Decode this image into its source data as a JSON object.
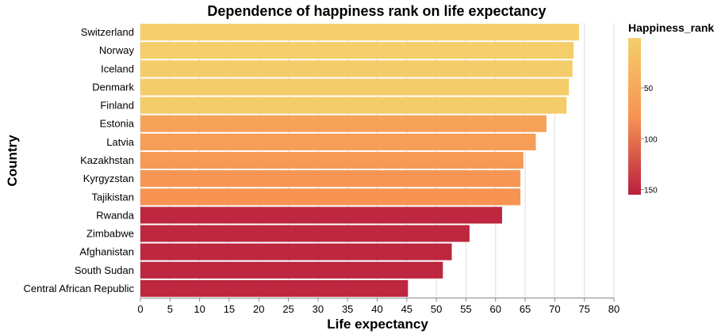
{
  "chart_data": {
    "type": "bar",
    "orientation": "horizontal",
    "title": "Dependence of happiness rank on life expectancy",
    "xlabel": "Life expectancy",
    "ylabel": "Country",
    "xlim": [
      0,
      80
    ],
    "x_ticks": [
      0,
      5,
      10,
      15,
      20,
      25,
      30,
      35,
      40,
      45,
      50,
      55,
      60,
      65,
      70,
      75,
      80
    ],
    "grid": "vertical",
    "categories": [
      "Switzerland",
      "Norway",
      "Iceland",
      "Denmark",
      "Finland",
      "Estonia",
      "Latvia",
      "Kazakhstan",
      "Kyrgyzstan",
      "Tajikistan",
      "Rwanda",
      "Zimbabwe",
      "Afghanistan",
      "South Sudan",
      "Central African Republic"
    ],
    "values": [
      74.1,
      73.2,
      73.0,
      72.4,
      72.0,
      68.6,
      66.8,
      64.7,
      64.2,
      64.2,
      61.1,
      55.6,
      52.6,
      51.1,
      45.2
    ],
    "happiness_rank": [
      1,
      2,
      3,
      4,
      5,
      60,
      65,
      70,
      75,
      78,
      150,
      150,
      150,
      150,
      150
    ],
    "legend": {
      "title": "Happiness_rank",
      "position": "right",
      "type": "gradient",
      "domain": [
        1,
        155
      ],
      "ticks": [
        50,
        100,
        150
      ],
      "colors": [
        "#f4cf6b",
        "#f79453",
        "#b91f3e"
      ]
    }
  }
}
